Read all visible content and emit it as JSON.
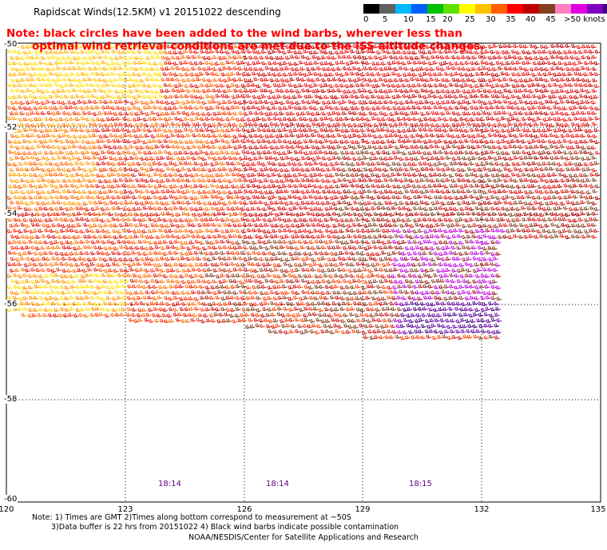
{
  "title": "Rapidscat Winds(12.5KM) v1 20151022 descending",
  "note": {
    "line1": "Note: black circles have been added to the wind barbs, wherever less than",
    "line2": "optimal wind retrieval conditions are met due to the ISS altitude changes."
  },
  "legend": {
    "colors": [
      "#000000",
      "#606060",
      "#00b8ff",
      "#0060ff",
      "#00c000",
      "#60e000",
      "#ffff00",
      "#ffc000",
      "#ff6000",
      "#ff0000",
      "#c00000",
      "#804020",
      "#ff80c0",
      "#e000e0",
      "#8000c0",
      "#400080"
    ],
    "labels": [
      "0",
      "5",
      "10",
      "15",
      "20",
      "25",
      "30",
      "35",
      "40",
      "45",
      ">50 knots"
    ]
  },
  "map": {
    "lat_labels": [
      "-50",
      "-52",
      "-54",
      "-56",
      "-58",
      "-60"
    ],
    "lon_labels": [
      "120",
      "123",
      "126",
      "129",
      "132",
      "135"
    ],
    "time_labels": [
      "18:14",
      "18:14",
      "18:15"
    ],
    "lon_range": [
      120,
      135
    ],
    "lat_range": [
      -60,
      -50
    ]
  },
  "footnotes": {
    "line1": "Note: 1) Times are GMT 2)Times along bottom correspond to measurement at ~50S",
    "line2": "3)Data buffer is 22 hrs from 20151022 4) Black wind barbs indicate possible contamination"
  },
  "credit": "NOAA/NESDIS/Center for Satellite Applications and Research"
}
